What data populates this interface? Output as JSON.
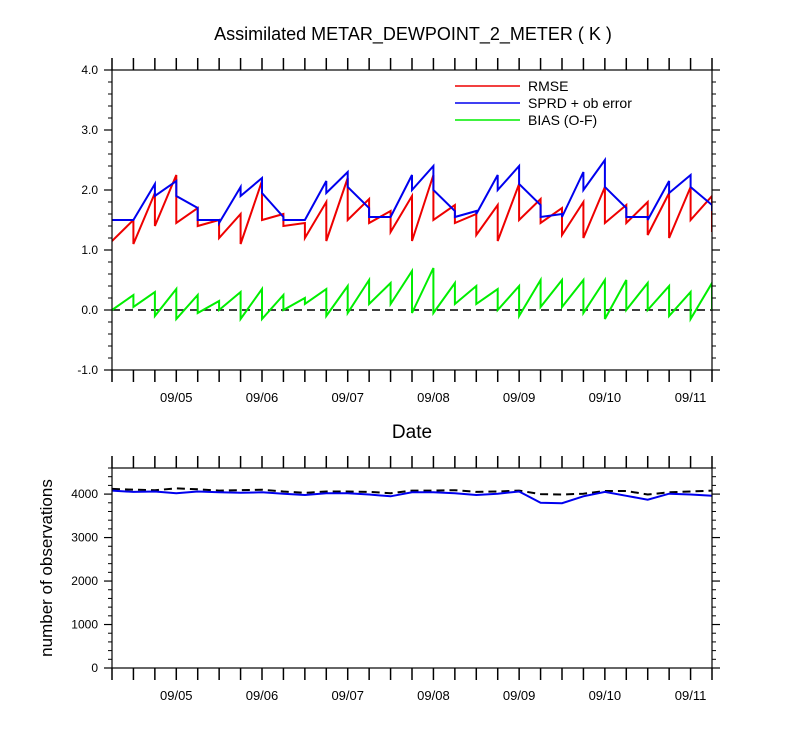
{
  "chart_data": [
    {
      "type": "line",
      "title": "Assimilated METAR_DEWPOINT_2_METER ( K )",
      "xlabel": "Date",
      "ylabel": "",
      "ylim": [
        -1.0,
        4.0
      ],
      "y_ticks": [
        "-1.0",
        "0.0",
        "1.0",
        "2.0",
        "3.0",
        "4.0"
      ],
      "x_range": [
        "09/04 06Z",
        "09/11 06Z"
      ],
      "x_tick_labels": [
        {
          "date": "09/05",
          "label": "09/05"
        },
        {
          "date": "09/06",
          "label": "09/06"
        },
        {
          "date": "09/07",
          "label": "09/07"
        },
        {
          "date": "09/08",
          "label": "09/08"
        },
        {
          "date": "09/09",
          "label": "09/09"
        },
        {
          "date": "09/10",
          "label": "09/10"
        },
        {
          "date": "09/11",
          "label": "09/11"
        }
      ],
      "grid": false,
      "legend_position": "top-right",
      "reference_line": {
        "y": 0.0,
        "style": "dashed",
        "color": "#000000"
      },
      "x": [
        "09/04 06Z",
        "09/04 12Z",
        "09/04 18Z",
        "09/05 00Z",
        "09/05 06Z",
        "09/05 12Z",
        "09/05 18Z",
        "09/06 00Z",
        "09/06 06Z",
        "09/06 12Z",
        "09/06 18Z",
        "09/07 00Z",
        "09/07 06Z",
        "09/07 12Z",
        "09/07 18Z",
        "09/08 00Z",
        "09/08 06Z",
        "09/08 12Z",
        "09/08 18Z",
        "09/09 00Z",
        "09/09 06Z",
        "09/09 12Z",
        "09/09 18Z",
        "09/10 00Z",
        "09/10 06Z",
        "09/10 12Z",
        "09/10 18Z",
        "09/11 00Z",
        "09/11 06Z"
      ],
      "series": [
        {
          "name": "RMSE",
          "color": "#ee0000",
          "forecast": [
            1.2,
            1.5,
            1.95,
            2.25,
            1.7,
            1.5,
            1.6,
            2.15,
            1.6,
            1.45,
            1.8,
            2.2,
            1.85,
            1.65,
            1.9,
            2.25,
            1.75,
            1.6,
            1.75,
            2.1,
            1.85,
            1.7,
            1.8,
            2.05,
            1.75,
            1.8,
            1.95,
            2.05,
            1.9
          ],
          "analysis": [
            1.15,
            1.1,
            1.4,
            1.45,
            1.4,
            1.2,
            1.1,
            1.5,
            1.4,
            1.2,
            1.15,
            1.5,
            1.45,
            1.3,
            1.15,
            1.5,
            1.45,
            1.25,
            1.15,
            1.5,
            1.45,
            1.25,
            1.2,
            1.45,
            1.45,
            1.25,
            1.2,
            1.5,
            1.3
          ]
        },
        {
          "name": "SPRD + ob error",
          "color": "#0000ee",
          "forecast": [
            1.5,
            1.5,
            2.1,
            2.15,
            1.7,
            1.5,
            2.05,
            2.2,
            1.55,
            1.5,
            2.15,
            2.3,
            1.7,
            1.55,
            2.25,
            2.4,
            1.65,
            1.65,
            2.25,
            2.4,
            1.75,
            1.6,
            2.3,
            2.5,
            1.7,
            1.55,
            2.15,
            2.25,
            1.75
          ],
          "analysis": [
            1.5,
            1.5,
            1.9,
            1.9,
            1.5,
            1.45,
            1.9,
            1.95,
            1.5,
            1.5,
            1.95,
            2.05,
            1.55,
            1.55,
            2.0,
            2.0,
            1.55,
            1.6,
            2.0,
            2.1,
            1.55,
            1.55,
            2.0,
            2.05,
            1.55,
            1.5,
            1.95,
            2.05,
            1.65
          ]
        },
        {
          "name": "BIAS (O-F)",
          "color": "#00ee00",
          "forecast": [
            0.15,
            0.25,
            0.3,
            0.35,
            0.25,
            0.15,
            0.3,
            0.35,
            0.25,
            0.2,
            0.35,
            0.4,
            0.5,
            0.45,
            0.65,
            0.7,
            0.45,
            0.4,
            0.35,
            0.4,
            0.5,
            0.5,
            0.5,
            0.5,
            0.5,
            0.45,
            0.4,
            0.3,
            0.45
          ],
          "analysis": [
            0.0,
            0.05,
            -0.1,
            -0.15,
            -0.05,
            0.0,
            -0.15,
            -0.15,
            0.0,
            0.1,
            -0.1,
            -0.05,
            0.1,
            0.1,
            -0.05,
            -0.05,
            0.1,
            0.1,
            0.0,
            -0.1,
            0.05,
            0.05,
            -0.05,
            -0.15,
            0.0,
            0.0,
            -0.1,
            -0.15,
            0.0
          ]
        }
      ]
    },
    {
      "type": "line",
      "title": "",
      "xlabel": "",
      "ylabel": "number of observations",
      "ylim": [
        0,
        4600
      ],
      "y_ticks": [
        "0",
        "1000",
        "2000",
        "3000",
        "4000"
      ],
      "x_range": [
        "09/04 06Z",
        "09/11 06Z"
      ],
      "x_tick_labels": [
        {
          "date": "09/05",
          "label": "09/05"
        },
        {
          "date": "09/06",
          "label": "09/06"
        },
        {
          "date": "09/07",
          "label": "09/07"
        },
        {
          "date": "09/08",
          "label": "09/08"
        },
        {
          "date": "09/09",
          "label": "09/09"
        },
        {
          "date": "09/10",
          "label": "09/10"
        },
        {
          "date": "09/11",
          "label": "09/11"
        }
      ],
      "grid": false,
      "x": [
        "09/04 06Z",
        "09/04 12Z",
        "09/04 18Z",
        "09/05 00Z",
        "09/05 06Z",
        "09/05 12Z",
        "09/05 18Z",
        "09/06 00Z",
        "09/06 06Z",
        "09/06 12Z",
        "09/06 18Z",
        "09/07 00Z",
        "09/07 06Z",
        "09/07 12Z",
        "09/07 18Z",
        "09/08 00Z",
        "09/08 06Z",
        "09/08 12Z",
        "09/08 18Z",
        "09/09 00Z",
        "09/09 06Z",
        "09/09 12Z",
        "09/09 18Z",
        "09/10 00Z",
        "09/10 06Z",
        "09/10 12Z",
        "09/10 18Z",
        "09/11 00Z",
        "09/11 06Z"
      ],
      "series": [
        {
          "color": "#000000",
          "style": "dashed",
          "values": [
            4120,
            4100,
            4090,
            4130,
            4110,
            4080,
            4090,
            4100,
            4060,
            4030,
            4060,
            4060,
            4050,
            4020,
            4080,
            4080,
            4090,
            4050,
            4060,
            4080,
            4000,
            3990,
            4010,
            4070,
            4070,
            3990,
            4040,
            4060,
            4080
          ]
        },
        {
          "color": "#0000ee",
          "style": "solid",
          "values": [
            4080,
            4050,
            4060,
            4020,
            4060,
            4040,
            4030,
            4040,
            4010,
            3980,
            4020,
            4020,
            3990,
            3950,
            4040,
            4040,
            4020,
            3980,
            4010,
            4060,
            3800,
            3790,
            3950,
            4050,
            3960,
            3870,
            4010,
            3990,
            3960
          ]
        }
      ]
    }
  ]
}
